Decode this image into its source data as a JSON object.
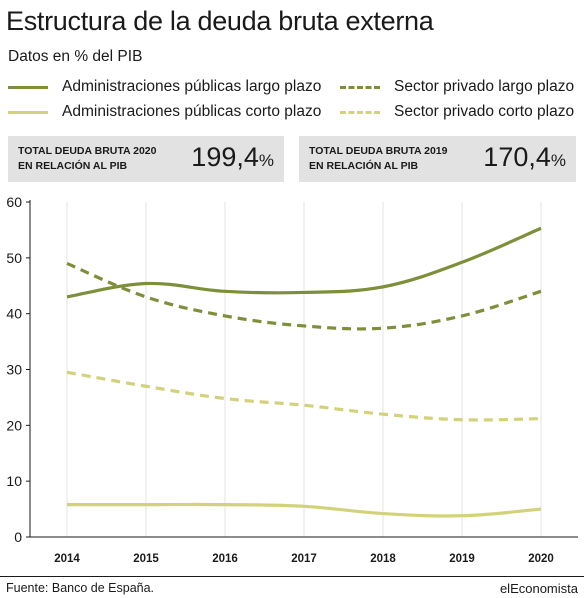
{
  "header": {
    "title": "Estructura de la deuda bruta externa",
    "subtitle": "Datos en % del PIB"
  },
  "legend": [
    {
      "label": "Administraciones públicas  largo plazo",
      "color": "#7e8f3a",
      "dash": false
    },
    {
      "label": "Sector privado largo plazo",
      "color": "#7e8f3a",
      "dash": true
    },
    {
      "label": "Administraciones públicas corto plazo",
      "color": "#d2d27a",
      "dash": false
    },
    {
      "label": "Sector privado corto plazo",
      "color": "#d2d27a",
      "dash": true
    }
  ],
  "summary": [
    {
      "label_line1": "TOTAL DEUDA BRUTA 2020",
      "label_line2": "EN RELACIÓN AL PIB",
      "value": "199,4",
      "unit": "%"
    },
    {
      "label_line1": "TOTAL DEUDA BRUTA 2019",
      "label_line2": "EN RELACIÓN AL PIB",
      "value": "170,4",
      "unit": "%"
    }
  ],
  "chart_data": {
    "type": "line",
    "x": [
      "2014",
      "2015",
      "2016",
      "2017",
      "2018",
      "2019",
      "2020"
    ],
    "ylim": [
      0,
      60
    ],
    "yticks": [
      0,
      10,
      20,
      30,
      40,
      50,
      60
    ],
    "grid": "vertical",
    "series": [
      {
        "name": "Administraciones públicas  largo plazo",
        "values": [
          43.0,
          45.4,
          44.0,
          43.8,
          44.8,
          49.2,
          55.3
        ],
        "color": "#7e8f3a",
        "dash": false
      },
      {
        "name": "Sector privado largo plazo",
        "values": [
          49.0,
          43.0,
          39.6,
          37.8,
          37.4,
          39.6,
          44.0
        ],
        "color": "#7e8f3a",
        "dash": true
      },
      {
        "name": "Administraciones públicas corto plazo",
        "values": [
          5.8,
          5.8,
          5.8,
          5.5,
          4.2,
          3.8,
          5.0
        ],
        "color": "#d2d27a",
        "dash": false
      },
      {
        "name": "Sector privado corto plazo",
        "values": [
          29.5,
          27.0,
          24.8,
          23.6,
          22.0,
          21.0,
          21.2
        ],
        "color": "#d2d27a",
        "dash": true
      }
    ]
  },
  "footer": {
    "source": "Fuente: Banco de España.",
    "brand": "elEconomista"
  }
}
